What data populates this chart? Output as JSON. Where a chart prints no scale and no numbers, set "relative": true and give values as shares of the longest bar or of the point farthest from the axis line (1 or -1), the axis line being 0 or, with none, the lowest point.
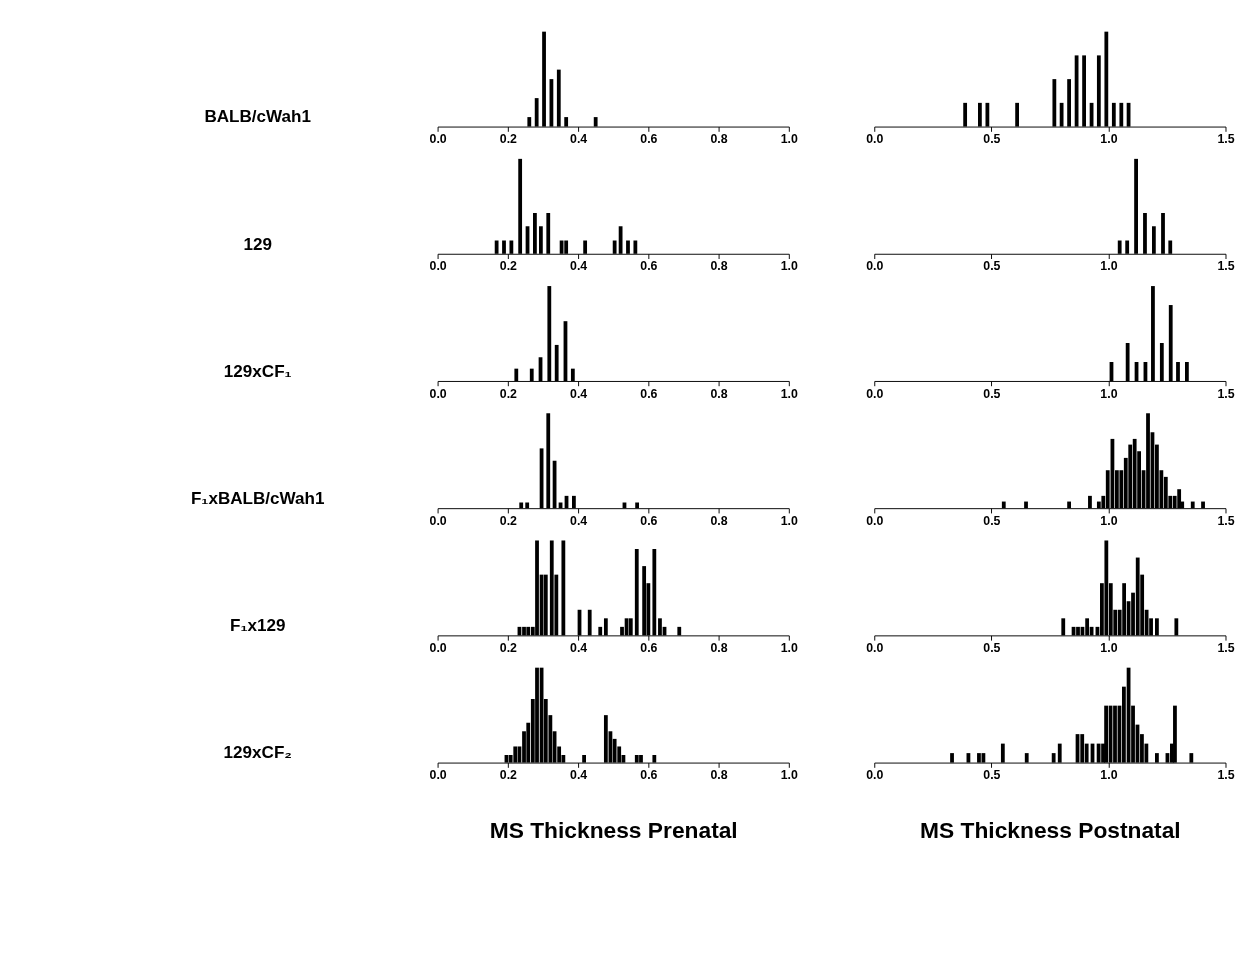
{
  "chart_data": [
    {
      "type": "bar",
      "relative": true,
      "ylabel": "BALB/cWah1",
      "color": "#000000",
      "grid": false,
      "tick_labels": "x",
      "xlim": [
        0,
        1
      ],
      "xticks": [
        {
          "value": 0,
          "label": "0.0"
        },
        {
          "value": 0.2,
          "label": "0.2"
        },
        {
          "value": 0.4,
          "label": "0.4"
        },
        {
          "value": 0.6,
          "label": "0.6"
        },
        {
          "value": 0.8,
          "label": "0.8"
        },
        {
          "value": 1,
          "label": "1.0"
        }
      ],
      "x": [
        0.261,
        0.282,
        0.303,
        0.324,
        0.345,
        0.366,
        0.45
      ],
      "values": [
        0.1,
        0.3,
        1,
        0.5,
        0.6,
        0.1,
        0.1
      ]
    },
    {
      "type": "bar",
      "relative": true,
      "color": "#000000",
      "grid": false,
      "tick_labels": "x",
      "xlim": [
        0,
        1.5
      ],
      "xticks": [
        {
          "value": 0,
          "label": "0.0"
        },
        {
          "value": 0.5,
          "label": "0.5"
        },
        {
          "value": 1,
          "label": "1.0"
        },
        {
          "value": 1.5,
          "label": "1.5"
        }
      ],
      "x": [
        0.388,
        0.451,
        0.483,
        0.61,
        0.769,
        0.8,
        0.832,
        0.864,
        0.896,
        0.928,
        0.959,
        0.991,
        1.023,
        1.055,
        1.086
      ],
      "values": [
        0.25,
        0.25,
        0.25,
        0.25,
        0.5,
        0.25,
        0.5,
        0.75,
        0.75,
        0.25,
        0.75,
        1,
        0.25,
        0.25,
        0.25
      ]
    },
    {
      "type": "bar",
      "relative": true,
      "ylabel": "129",
      "color": "#000000",
      "grid": false,
      "tick_labels": "x",
      "xlim": [
        0,
        1
      ],
      "xticks": [
        {
          "value": 0,
          "label": "0.0"
        },
        {
          "value": 0.2,
          "label": "0.2"
        },
        {
          "value": 0.4,
          "label": "0.4"
        },
        {
          "value": 0.6,
          "label": "0.6"
        },
        {
          "value": 0.8,
          "label": "0.8"
        },
        {
          "value": 1,
          "label": "1.0"
        }
      ],
      "x": [
        0.168,
        0.189,
        0.21,
        0.235,
        0.256,
        0.277,
        0.294,
        0.315,
        0.353,
        0.366,
        0.42,
        0.504,
        0.521,
        0.542,
        0.563
      ],
      "values": [
        0.14,
        0.14,
        0.14,
        1,
        0.29,
        0.43,
        0.29,
        0.43,
        0.14,
        0.14,
        0.14,
        0.14,
        0.29,
        0.14,
        0.14
      ]
    },
    {
      "type": "bar",
      "relative": true,
      "color": "#000000",
      "grid": false,
      "tick_labels": "x",
      "xlim": [
        0,
        1.5
      ],
      "xticks": [
        {
          "value": 0,
          "label": "0.0"
        },
        {
          "value": 0.5,
          "label": "0.5"
        },
        {
          "value": 1,
          "label": "1.0"
        },
        {
          "value": 1.5,
          "label": "1.5"
        }
      ],
      "x": [
        1.048,
        1.08,
        1.118,
        1.156,
        1.194,
        1.233,
        1.264
      ],
      "values": [
        0.14,
        0.14,
        1,
        0.43,
        0.29,
        0.43,
        0.14
      ]
    },
    {
      "type": "bar",
      "relative": true,
      "ylabel": "129xCF₁",
      "color": "#000000",
      "grid": false,
      "tick_labels": "x",
      "xlim": [
        0,
        1
      ],
      "xticks": [
        {
          "value": 0,
          "label": "0.0"
        },
        {
          "value": 0.2,
          "label": "0.2"
        },
        {
          "value": 0.4,
          "label": "0.4"
        },
        {
          "value": 0.6,
          "label": "0.6"
        },
        {
          "value": 0.8,
          "label": "0.8"
        },
        {
          "value": 1,
          "label": "1.0"
        }
      ],
      "x": [
        0.224,
        0.268,
        0.293,
        0.318,
        0.339,
        0.364,
        0.385
      ],
      "values": [
        0.13,
        0.13,
        0.25,
        1,
        0.38,
        0.63,
        0.13
      ]
    },
    {
      "type": "bar",
      "relative": true,
      "color": "#000000",
      "grid": false,
      "tick_labels": "x",
      "xlim": [
        0,
        1.5
      ],
      "xticks": [
        {
          "value": 0,
          "label": "0.0"
        },
        {
          "value": 0.5,
          "label": "0.5"
        },
        {
          "value": 1,
          "label": "1.0"
        },
        {
          "value": 1.5,
          "label": "1.5"
        }
      ],
      "x": [
        1.013,
        1.082,
        1.12,
        1.158,
        1.19,
        1.228,
        1.266,
        1.297,
        1.335
      ],
      "values": [
        0.2,
        0.4,
        0.2,
        0.2,
        1,
        0.4,
        0.8,
        0.2,
        0.2
      ]
    },
    {
      "type": "bar",
      "relative": true,
      "ylabel": "F₁xBALB/cWah1",
      "color": "#000000",
      "grid": false,
      "tick_labels": "x",
      "xlim": [
        0,
        1
      ],
      "xticks": [
        {
          "value": 0,
          "label": "0.0"
        },
        {
          "value": 0.2,
          "label": "0.2"
        },
        {
          "value": 0.4,
          "label": "0.4"
        },
        {
          "value": 0.6,
          "label": "0.6"
        },
        {
          "value": 0.8,
          "label": "0.8"
        },
        {
          "value": 1,
          "label": "1.0"
        }
      ],
      "x": [
        0.238,
        0.255,
        0.296,
        0.315,
        0.333,
        0.35,
        0.367,
        0.388,
        0.532,
        0.568
      ],
      "values": [
        0.06,
        0.06,
        0.63,
        1,
        0.5,
        0.06,
        0.13,
        0.13,
        0.06,
        0.06
      ]
    },
    {
      "type": "bar",
      "relative": true,
      "color": "#000000",
      "grid": false,
      "tick_labels": "x",
      "xlim": [
        0,
        1.5
      ],
      "xticks": [
        {
          "value": 0,
          "label": "0.0"
        },
        {
          "value": 0.5,
          "label": "0.5"
        },
        {
          "value": 1,
          "label": "1.0"
        },
        {
          "value": 1.5,
          "label": "1.5"
        }
      ],
      "x": [
        0.553,
        0.648,
        0.832,
        0.921,
        0.959,
        0.978,
        0.997,
        1.017,
        1.036,
        1.055,
        1.074,
        1.093,
        1.112,
        1.131,
        1.15,
        1.169,
        1.188,
        1.207,
        1.226,
        1.245,
        1.264,
        1.283,
        1.302,
        1.315,
        1.36,
        1.404
      ],
      "values": [
        0.07,
        0.07,
        0.07,
        0.13,
        0.07,
        0.13,
        0.4,
        0.73,
        0.4,
        0.4,
        0.53,
        0.67,
        0.73,
        0.6,
        0.4,
        1,
        0.8,
        0.67,
        0.4,
        0.33,
        0.13,
        0.13,
        0.2,
        0.07,
        0.07,
        0.07
      ]
    },
    {
      "type": "bar",
      "relative": true,
      "ylabel": "F₁x129",
      "color": "#000000",
      "grid": false,
      "tick_labels": "x",
      "xlim": [
        0,
        1
      ],
      "xticks": [
        {
          "value": 0,
          "label": "0.0"
        },
        {
          "value": 0.2,
          "label": "0.2"
        },
        {
          "value": 0.4,
          "label": "0.4"
        },
        {
          "value": 0.6,
          "label": "0.6"
        },
        {
          "value": 0.8,
          "label": "0.8"
        },
        {
          "value": 1,
          "label": "1.0"
        }
      ],
      "x": [
        0.233,
        0.246,
        0.258,
        0.271,
        0.283,
        0.296,
        0.308,
        0.325,
        0.338,
        0.358,
        0.404,
        0.433,
        0.463,
        0.479,
        0.525,
        0.538,
        0.55,
        0.567,
        0.588,
        0.6,
        0.617,
        0.633,
        0.646,
        0.688
      ],
      "values": [
        0.09,
        0.09,
        0.09,
        0.09,
        1,
        0.64,
        0.64,
        1,
        0.64,
        1,
        0.27,
        0.27,
        0.09,
        0.18,
        0.09,
        0.18,
        0.18,
        0.91,
        0.73,
        0.55,
        0.91,
        0.18,
        0.09,
        0.09
      ]
    },
    {
      "type": "bar",
      "relative": true,
      "color": "#000000",
      "grid": false,
      "tick_labels": "x",
      "xlim": [
        0,
        1.5
      ],
      "xticks": [
        {
          "value": 0,
          "label": "0.0"
        },
        {
          "value": 0.5,
          "label": "0.5"
        },
        {
          "value": 1,
          "label": "1.0"
        },
        {
          "value": 1.5,
          "label": "1.5"
        }
      ],
      "x": [
        0.807,
        0.851,
        0.87,
        0.889,
        0.909,
        0.928,
        0.953,
        0.972,
        0.991,
        1.01,
        1.029,
        1.048,
        1.067,
        1.086,
        1.105,
        1.125,
        1.144,
        1.163,
        1.182,
        1.207,
        1.29
      ],
      "values": [
        0.18,
        0.09,
        0.09,
        0.09,
        0.18,
        0.09,
        0.09,
        0.55,
        1,
        0.55,
        0.27,
        0.27,
        0.55,
        0.36,
        0.45,
        0.82,
        0.64,
        0.27,
        0.18,
        0.18,
        0.18
      ]
    },
    {
      "type": "bar",
      "relative": true,
      "ylabel": "129xCF₂",
      "xlabel": "MS Thickness Prenatal",
      "color": "#000000",
      "grid": false,
      "tick_labels": "x",
      "xlim": [
        0,
        1
      ],
      "xticks": [
        {
          "value": 0,
          "label": "0.0"
        },
        {
          "value": 0.2,
          "label": "0.2"
        },
        {
          "value": 0.4,
          "label": "0.4"
        },
        {
          "value": 0.6,
          "label": "0.6"
        },
        {
          "value": 0.8,
          "label": "0.8"
        },
        {
          "value": 1,
          "label": "1.0"
        }
      ],
      "x": [
        0.196,
        0.208,
        0.221,
        0.233,
        0.246,
        0.258,
        0.271,
        0.283,
        0.296,
        0.308,
        0.321,
        0.333,
        0.346,
        0.358,
        0.417,
        0.479,
        0.492,
        0.504,
        0.517,
        0.529,
        0.567,
        0.579,
        0.617
      ],
      "values": [
        0.08,
        0.08,
        0.17,
        0.17,
        0.33,
        0.42,
        0.67,
        1,
        1,
        0.67,
        0.5,
        0.33,
        0.17,
        0.08,
        0.08,
        0.5,
        0.33,
        0.25,
        0.17,
        0.08,
        0.08,
        0.08,
        0.08
      ]
    },
    {
      "type": "bar",
      "relative": true,
      "xlabel": "MS Thickness Postnatal",
      "color": "#000000",
      "grid": false,
      "tick_labels": "x",
      "xlim": [
        0,
        1.5
      ],
      "xticks": [
        {
          "value": 0,
          "label": "0.0"
        },
        {
          "value": 0.5,
          "label": "0.5"
        },
        {
          "value": 1,
          "label": "1.0"
        },
        {
          "value": 1.5,
          "label": "1.5"
        }
      ],
      "x": [
        0.332,
        0.402,
        0.447,
        0.466,
        0.549,
        0.651,
        0.766,
        0.792,
        0.868,
        0.888,
        0.907,
        0.932,
        0.958,
        0.977,
        0.99,
        1.009,
        1.028,
        1.047,
        1.066,
        1.086,
        1.105,
        1.124,
        1.143,
        1.162,
        1.207,
        1.252,
        1.271,
        1.284,
        1.354
      ],
      "values": [
        0.1,
        0.1,
        0.1,
        0.1,
        0.2,
        0.1,
        0.1,
        0.2,
        0.3,
        0.3,
        0.2,
        0.2,
        0.2,
        0.2,
        0.6,
        0.6,
        0.6,
        0.6,
        0.8,
        1,
        0.6,
        0.4,
        0.3,
        0.2,
        0.1,
        0.1,
        0.2,
        0.6,
        0.1
      ]
    }
  ]
}
